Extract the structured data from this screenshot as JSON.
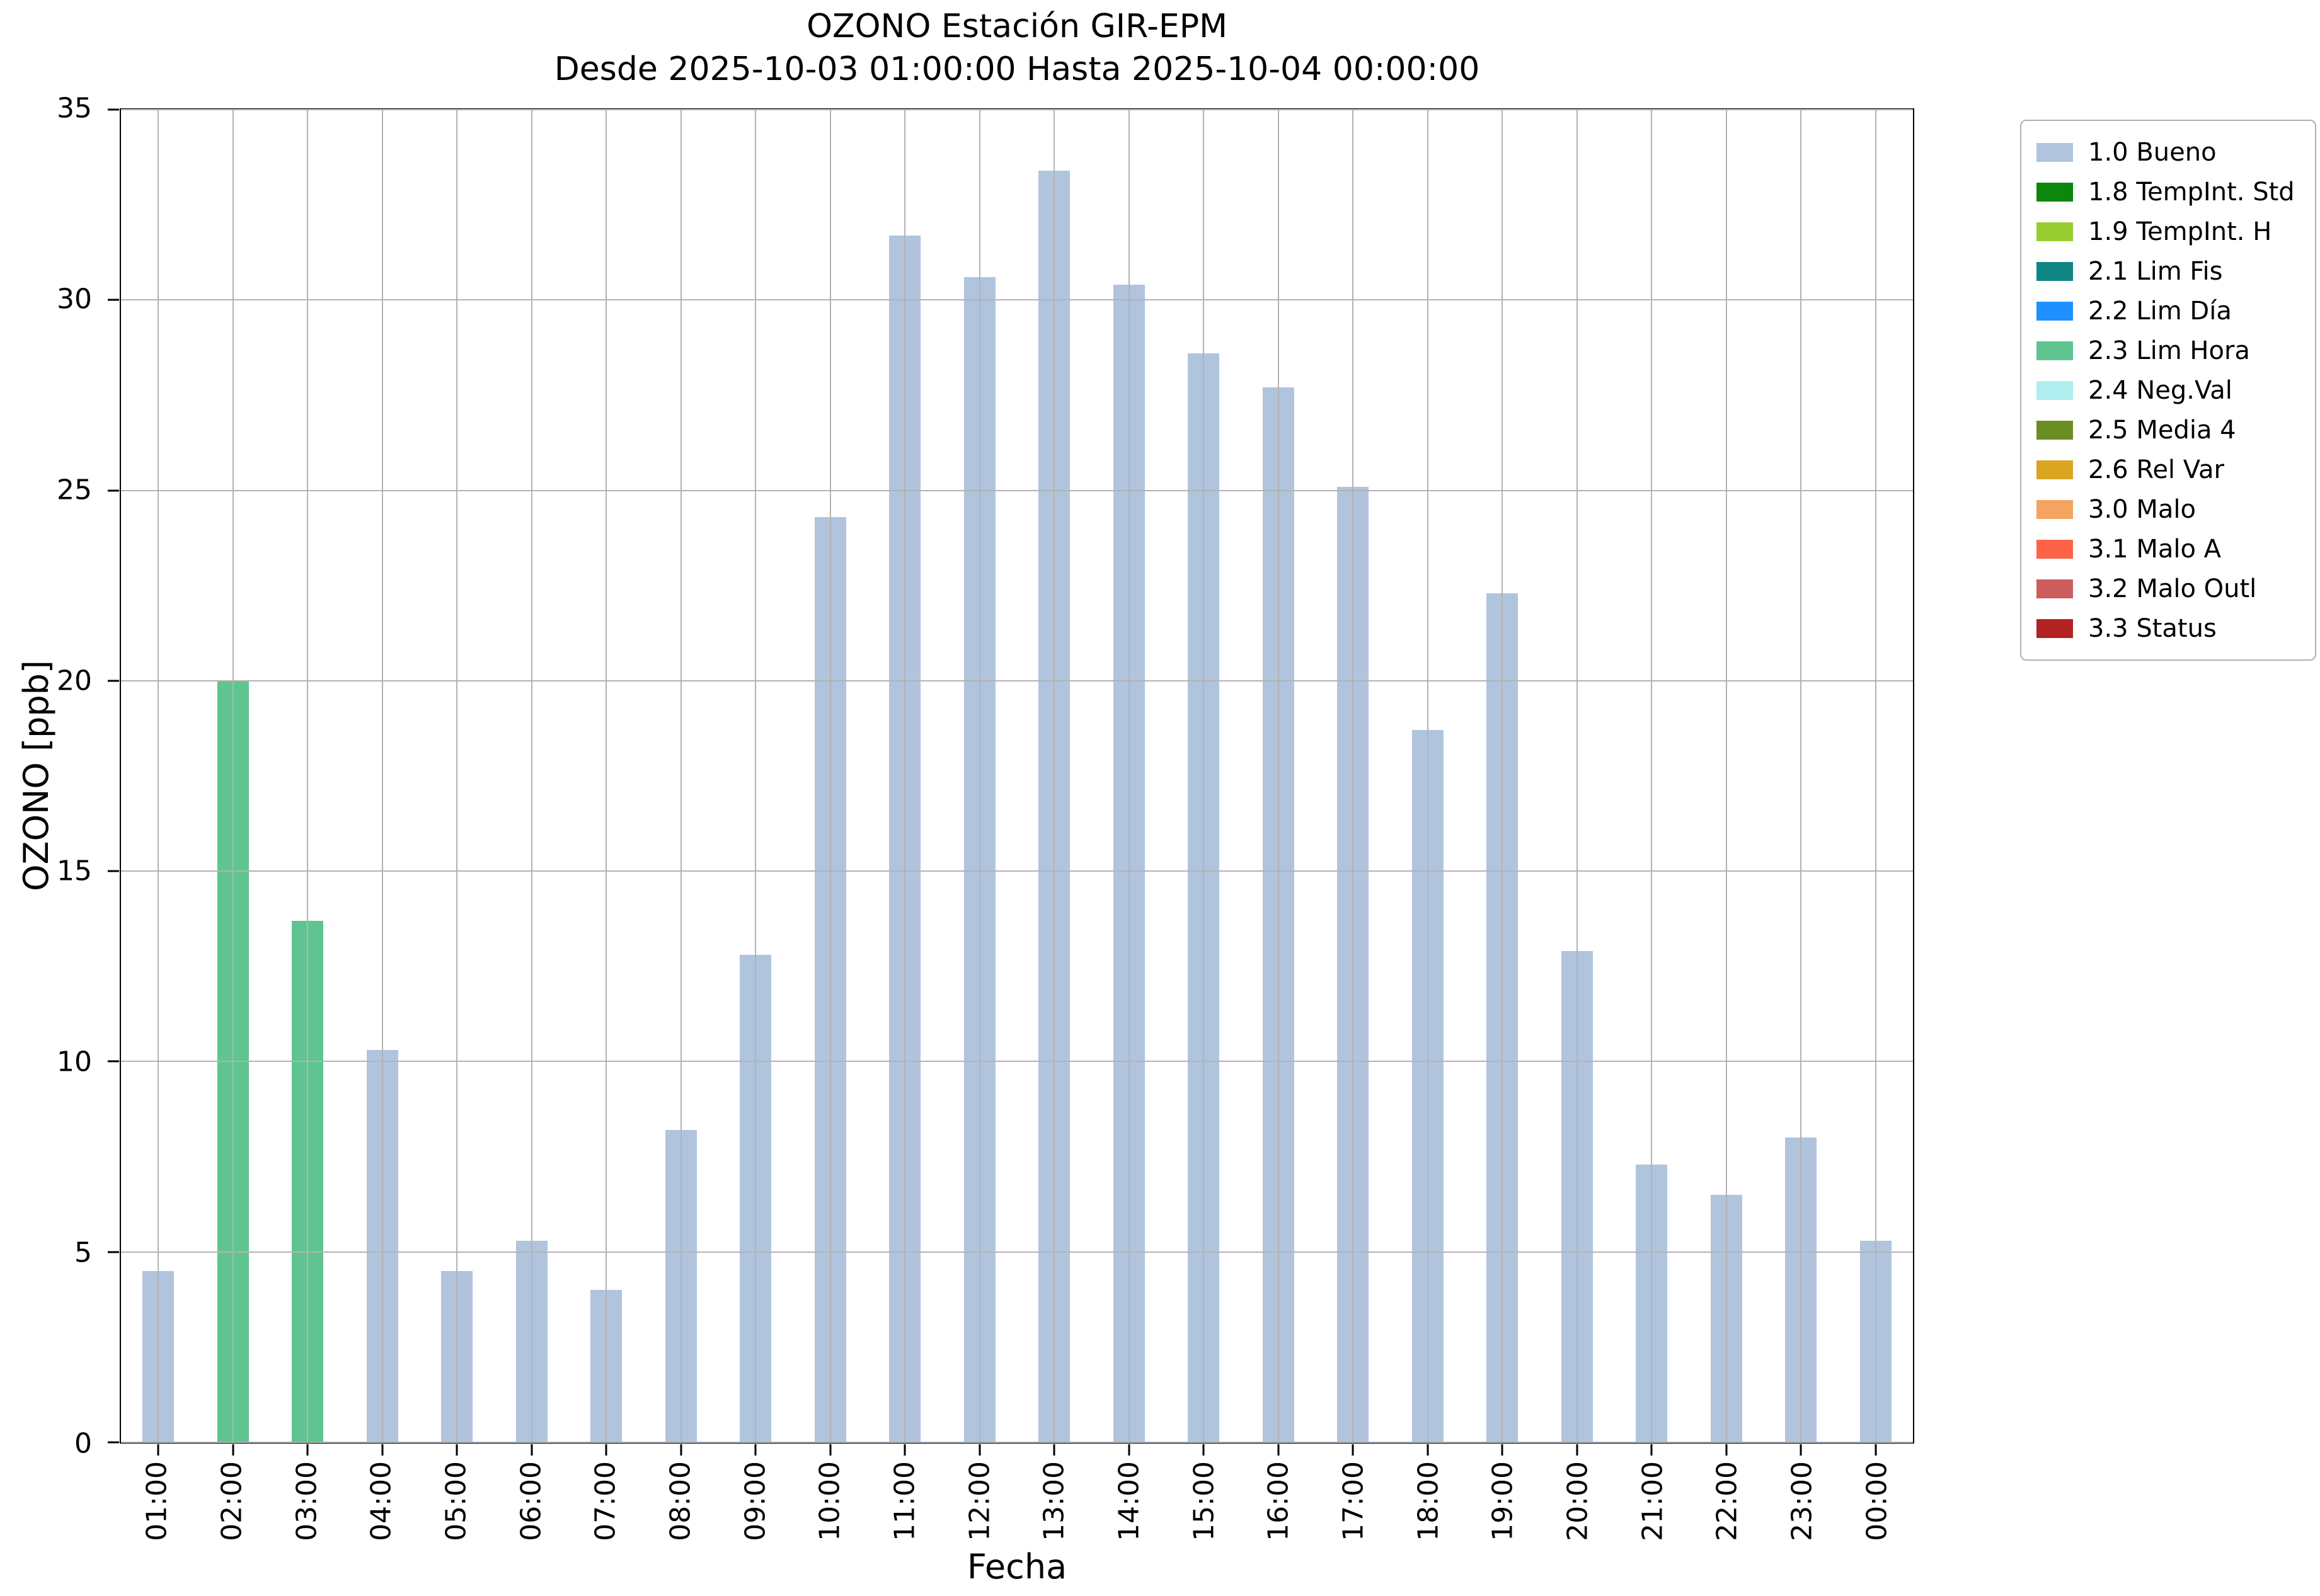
{
  "chart_data": {
    "type": "bar",
    "title": "OZONO Estación GIR-EPM",
    "subtitle": "Desde 2025-10-03 01:00:00 Hasta 2025-10-04 00:00:00",
    "xlabel": "Fecha",
    "ylabel": "OZONO [ppb]",
    "ylim": [
      0,
      35
    ],
    "yticks": [
      0,
      5,
      10,
      15,
      20,
      25,
      30,
      35
    ],
    "grid": true,
    "categories": [
      "01:00",
      "02:00",
      "03:00",
      "04:00",
      "05:00",
      "06:00",
      "07:00",
      "08:00",
      "09:00",
      "10:00",
      "11:00",
      "12:00",
      "13:00",
      "14:00",
      "15:00",
      "16:00",
      "17:00",
      "18:00",
      "19:00",
      "20:00",
      "21:00",
      "22:00",
      "23:00",
      "00:00"
    ],
    "values": [
      4.5,
      20.0,
      13.7,
      10.3,
      4.5,
      5.3,
      4.0,
      8.2,
      12.8,
      24.3,
      31.7,
      30.6,
      33.4,
      30.4,
      28.6,
      27.7,
      25.1,
      18.7,
      22.3,
      12.9,
      7.3,
      6.5,
      8.0,
      5.3
    ],
    "bar_flags": [
      "1.0 Bueno",
      "2.3 Lim Hora",
      "2.3 Lim Hora",
      "1.0 Bueno",
      "1.0 Bueno",
      "1.0 Bueno",
      "1.0 Bueno",
      "1.0 Bueno",
      "1.0 Bueno",
      "1.0 Bueno",
      "1.0 Bueno",
      "1.0 Bueno",
      "1.0 Bueno",
      "1.0 Bueno",
      "1.0 Bueno",
      "1.0 Bueno",
      "1.0 Bueno",
      "1.0 Bueno",
      "1.0 Bueno",
      "1.0 Bueno",
      "1.0 Bueno",
      "1.0 Bueno",
      "1.0 Bueno",
      "1.0 Bueno"
    ],
    "legend": {
      "position": "upper-right-outside",
      "items": [
        {
          "label": "1.0 Bueno",
          "color": "#B0C4DE"
        },
        {
          "label": "1.8 TempInt. Std",
          "color": "#0c860c"
        },
        {
          "label": "1.9 TempInt. H",
          "color": "#9ACD32"
        },
        {
          "label": "2.1 Lim Fis",
          "color": "#0f8585"
        },
        {
          "label": "2.2 Lim Día",
          "color": "#1E90FF"
        },
        {
          "label": "2.3 Lim Hora",
          "color": "#5FC48F"
        },
        {
          "label": "2.4 Neg.Val",
          "color": "#AFEEEE"
        },
        {
          "label": "2.5 Media 4",
          "color": "#6B8E23"
        },
        {
          "label": "2.6 Rel Var",
          "color": "#DAA520"
        },
        {
          "label": "3.0 Malo",
          "color": "#F4A460"
        },
        {
          "label": "3.1 Malo A",
          "color": "#FF6347"
        },
        {
          "label": "3.2 Malo Outl",
          "color": "#CD5C5C"
        },
        {
          "label": "3.3 Status",
          "color": "#B22222"
        }
      ]
    }
  }
}
